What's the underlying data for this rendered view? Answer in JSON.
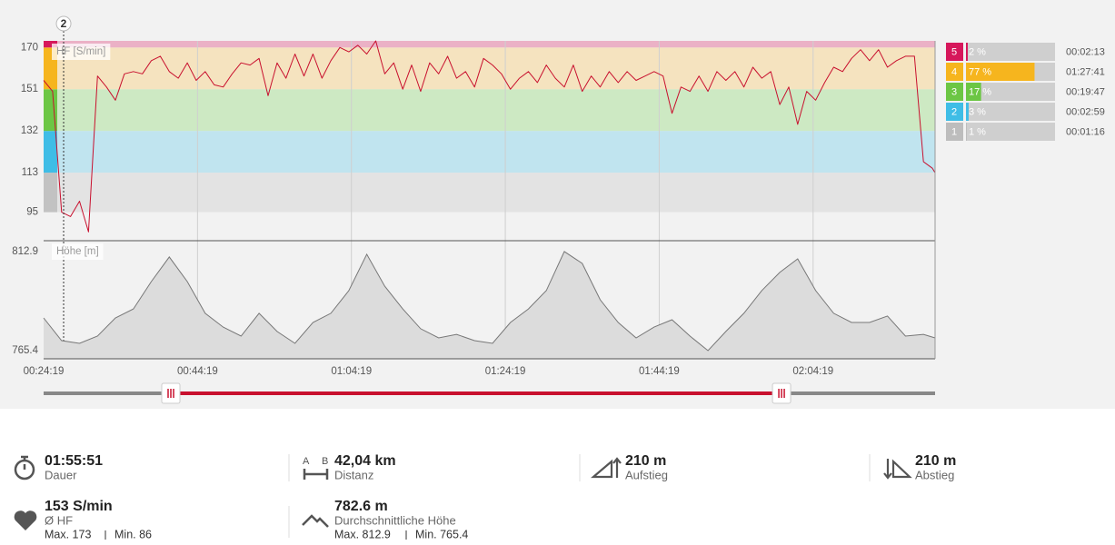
{
  "chart_data": [
    {
      "type": "line",
      "ylabel": "HF [S/min]",
      "x": [
        1459,
        1529,
        1599,
        1669,
        1739,
        1809,
        1879,
        1949,
        2019,
        2089,
        2159,
        2229,
        2299,
        2369,
        2439,
        2509,
        2579,
        2649,
        2719,
        2789,
        2859,
        2929,
        2999,
        3069,
        3139,
        3209,
        3279,
        3349,
        3419,
        3489,
        3559,
        3629,
        3699,
        3769,
        3839,
        3909,
        3979,
        4049,
        4119,
        4189,
        4259,
        4329,
        4399,
        4469,
        4539,
        4609,
        4679,
        4749,
        4819,
        4889,
        4959,
        5029,
        5099,
        5169,
        5239,
        5309,
        5379,
        5449,
        5519,
        5589,
        5659,
        5729,
        5799,
        5869,
        5939,
        6009,
        6079,
        6149,
        6219,
        6289,
        6359,
        6429,
        6499,
        6569,
        6639,
        6709,
        6779,
        6849,
        6919,
        6989,
        7059,
        7129,
        7199,
        7269,
        7339,
        7409,
        7479,
        7549,
        7619,
        7689,
        7759,
        7829,
        7899,
        7969,
        8039,
        8109,
        8179,
        8249,
        8319,
        8389,
        8410
      ],
      "values": [
        155,
        150,
        95,
        93,
        100,
        86,
        157,
        152,
        146,
        158,
        159,
        158,
        164,
        166,
        159,
        156,
        163,
        155,
        159,
        153,
        152,
        158,
        163,
        162,
        165,
        148,
        163,
        156,
        167,
        157,
        167,
        156,
        164,
        170,
        168,
        171,
        167,
        173,
        158,
        163,
        151,
        162,
        150,
        163,
        158,
        166,
        156,
        159,
        152,
        165,
        162,
        158,
        151,
        156,
        159,
        154,
        162,
        156,
        152,
        162,
        150,
        157,
        152,
        159,
        154,
        159,
        155,
        157,
        159,
        157,
        140,
        152,
        150,
        157,
        150,
        159,
        155,
        159,
        152,
        161,
        156,
        159,
        144,
        152,
        135,
        150,
        146,
        154,
        161,
        159,
        165,
        169,
        164,
        169,
        161,
        164,
        166,
        166,
        118,
        115,
        113
      ],
      "color": "#c8102e",
      "xlim": [
        1459,
        8410
      ],
      "ylim": [
        82,
        173
      ],
      "yticks": [
        95,
        113,
        132,
        151,
        170
      ],
      "grid": true,
      "bands": [
        {
          "from": 95,
          "to": 113,
          "color": "#e3e3e3",
          "accent": "#c2c2c2"
        },
        {
          "from": 113,
          "to": 132,
          "color": "#c0e4ef",
          "accent": "#3fbde6"
        },
        {
          "from": 132,
          "to": 151,
          "color": "#cde9c3",
          "accent": "#6cc644"
        },
        {
          "from": 151,
          "to": 170,
          "color": "#f5e3bf",
          "accent": "#f6b51e"
        },
        {
          "from": 170,
          "to": 173,
          "color": "#ebb1c6",
          "accent": "#d6175b"
        }
      ],
      "marker": {
        "label": "2",
        "x": 1615
      }
    },
    {
      "type": "area",
      "ylabel": "Höhe [m]",
      "x": [
        1459,
        1599,
        1739,
        1879,
        2019,
        2159,
        2299,
        2439,
        2579,
        2719,
        2859,
        2999,
        3139,
        3279,
        3419,
        3559,
        3699,
        3839,
        3979,
        4119,
        4259,
        4399,
        4539,
        4679,
        4819,
        4959,
        5099,
        5239,
        5379,
        5519,
        5659,
        5799,
        5939,
        6079,
        6219,
        6359,
        6499,
        6639,
        6779,
        6919,
        7059,
        7199,
        7339,
        7479,
        7619,
        7759,
        7899,
        8039,
        8179,
        8319,
        8410
      ],
      "values": [
        781.1,
        770.2,
        768.9,
        772.4,
        781.1,
        785.4,
        798.5,
        810.3,
        798.5,
        783.3,
        776.7,
        772.4,
        783.3,
        774.6,
        768.9,
        778.9,
        783.3,
        794.2,
        811.6,
        796.3,
        785.4,
        775.9,
        771.5,
        773.2,
        770.2,
        768.9,
        778.9,
        785.4,
        794.2,
        812.9,
        807.2,
        789.8,
        778.9,
        771.5,
        776.7,
        780.2,
        772.4,
        765.4,
        774.6,
        783.3,
        794.2,
        802.9,
        809.4,
        794.2,
        783.3,
        778.9,
        778.9,
        782.0,
        772.4,
        773.2,
        771.5
      ],
      "color": "#777777",
      "fill": "#dcdcdc",
      "xlim": [
        1459,
        8410
      ],
      "ylim": [
        761.5,
        818.1
      ],
      "yticks": [
        765.4,
        812.9
      ],
      "grid": true,
      "xticks": [
        {
          "value": 1459,
          "label": "00:24:19"
        },
        {
          "value": 2659,
          "label": "00:44:19"
        },
        {
          "value": 3859,
          "label": "01:04:19"
        },
        {
          "value": 5059,
          "label": "01:24:19"
        },
        {
          "value": 6259,
          "label": "01:44:19"
        },
        {
          "value": 7459,
          "label": "02:04:19"
        }
      ]
    }
  ],
  "zones": {
    "names": [
      "5",
      "4",
      "3",
      "2",
      "1"
    ],
    "values": [
      2,
      77,
      17,
      3,
      1
    ],
    "value_labels": [
      "2 %",
      "77 %",
      "17 %",
      "3 %",
      "1 %"
    ],
    "times": [
      "00:02:13",
      "01:27:41",
      "00:19:47",
      "00:02:59",
      "00:01:16"
    ],
    "colors": [
      "#d6175b",
      "#f6b51e",
      "#6cc644",
      "#3fbde6",
      "#bdbdbd"
    ]
  },
  "slider": {
    "range": [
      2451,
      7213
    ],
    "color": "#c8102e"
  },
  "stats": [
    {
      "value": "01:55:51",
      "label": "Dauer"
    },
    {
      "value": "42,04 km",
      "label": "Distanz",
      "icon": [
        "A",
        "B"
      ]
    },
    {
      "value": "210 m",
      "label": "Aufstieg"
    },
    {
      "value": "210 m",
      "label": "Abstieg"
    },
    {
      "value": "153 S/min",
      "label": "Ø HF",
      "details": [
        "Max. 173",
        "Min. 86"
      ]
    },
    {
      "value": "782.6 m",
      "label": "Durchschnittliche Höhe",
      "details": [
        "Max. 812.9",
        "Min. 765.4"
      ]
    }
  ]
}
